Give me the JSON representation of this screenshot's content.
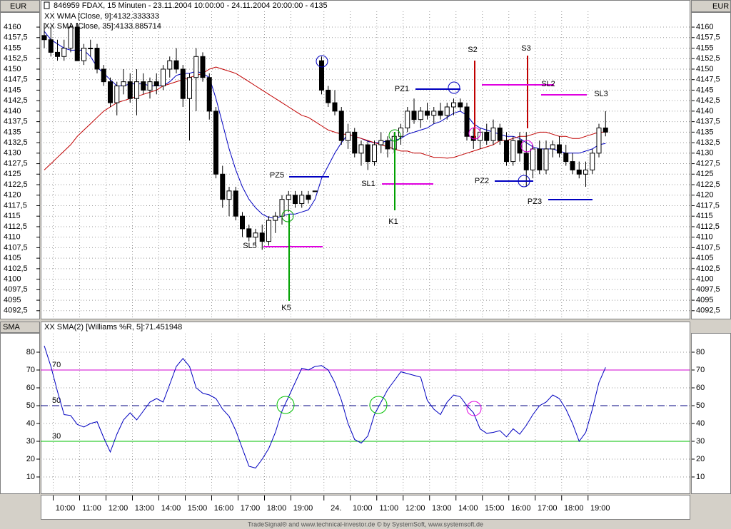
{
  "header": {
    "left_currency": "EUR",
    "right_currency": "EUR"
  },
  "chart_data": [
    {
      "type": "candlestick",
      "title": "846959  FDAX, 15 Minuten - 23.11.2004 10:00:00 - 24.11.2004 20:00:00 - 4135",
      "categories": [
        null,
        null,
        "10:00",
        null,
        null,
        null,
        "11:00",
        null,
        null,
        null,
        "12:00",
        null,
        null,
        null,
        "13:00",
        null,
        null,
        null,
        "14:00",
        null,
        null,
        null,
        "15:00",
        null,
        null,
        null,
        "16:00",
        null,
        null,
        null,
        "17:00",
        null,
        null,
        null,
        "18:00",
        null,
        null,
        null,
        "19:00",
        null,
        null,
        null,
        null,
        "24.",
        null,
        null,
        null,
        "10:00",
        null,
        null,
        null,
        "11:00",
        null,
        null,
        null,
        "12:00",
        null,
        null,
        null,
        "13:00",
        null,
        null,
        null,
        "14:00",
        null,
        null,
        null,
        "15:00",
        null,
        null,
        null,
        "16:00",
        null,
        null,
        null,
        "17:00",
        null,
        null,
        null,
        "18:00",
        null,
        null,
        null,
        "19:00",
        null,
        null
      ],
      "open": [
        4158,
        4157,
        4154,
        4153,
        4155,
        4160,
        4152,
        4155,
        4155,
        4150,
        4147,
        4142,
        4146,
        4147,
        4143,
        4147,
        4145,
        4147,
        4146,
        4150,
        4152,
        4150,
        4143,
        4148,
        4153,
        4148,
        4140,
        4125,
        4119,
        4121,
        4115,
        4112,
        4110,
        4111,
        4109,
        4114,
        4115,
        4119,
        4120,
        4118,
        4120,
        4121,
        4152,
        4145,
        4142,
        4140,
        4133,
        4135,
        4130,
        4132,
        4128,
        4132,
        4133,
        4131,
        4134,
        4136,
        4140,
        4138,
        4140,
        4139,
        4140,
        4139,
        4141,
        4142,
        4141,
        4134,
        4133,
        4135,
        4133,
        4136,
        4133,
        4128,
        4133,
        4130,
        4126,
        4131,
        4126,
        4131,
        4132,
        4130,
        4128,
        4126,
        4125,
        4126,
        4130,
        4136
      ],
      "high": [
        4161,
        4160,
        4157,
        4157,
        4161,
        4161,
        4156,
        4157,
        4156,
        4151,
        4148,
        4147,
        4150,
        4149,
        4150,
        4149,
        4148,
        4149,
        4151,
        4153,
        4155,
        4151,
        4149,
        4155,
        4154,
        4149,
        4141,
        4127,
        4122,
        4122,
        4116,
        4113,
        4112,
        4113,
        4115,
        4116,
        4120,
        4121,
        4121,
        4121,
        4121,
        4121,
        4153,
        4146,
        4145,
        4141,
        4137,
        4136,
        4133,
        4133,
        4133,
        4135,
        4134,
        4135,
        4137,
        4141,
        4143,
        4141,
        4142,
        4141,
        4142,
        4142,
        4143,
        4143,
        4142,
        4136,
        4136,
        4137,
        4138,
        4137,
        4135,
        4134,
        4135,
        4135,
        4132,
        4133,
        4133,
        4133,
        4134,
        4132,
        4130,
        4128,
        4128,
        4131,
        4137,
        4140
      ],
      "low": [
        4155,
        4153,
        4152,
        4152,
        4154,
        4152,
        4151,
        4153,
        4149,
        4146,
        4141,
        4139,
        4144,
        4142,
        4139,
        4144,
        4143,
        4144,
        4145,
        4148,
        4149,
        4141,
        4133,
        4140,
        4147,
        4138,
        4124,
        4117,
        4115,
        4114,
        4110,
        4109,
        4108,
        4107,
        4108,
        4111,
        4113,
        4116,
        4117,
        4117,
        4118,
        4121,
        4144,
        4141,
        4139,
        4132,
        4131,
        4129,
        4127,
        4126,
        4127,
        4130,
        4129,
        4130,
        4132,
        4135,
        4137,
        4136,
        4138,
        4137,
        4138,
        4138,
        4139,
        4140,
        4133,
        4131,
        4131,
        4132,
        4132,
        4132,
        4127,
        4127,
        4128,
        4122,
        4124,
        4125,
        4125,
        4129,
        4129,
        4127,
        4125,
        4124,
        4122,
        4125,
        4129,
        4134
      ],
      "close": [
        4157,
        4154,
        4153,
        4155,
        4160,
        4152,
        4155,
        4155,
        4150,
        4147,
        4142,
        4146,
        4147,
        4143,
        4147,
        4145,
        4147,
        4146,
        4150,
        4152,
        4150,
        4143,
        4148,
        4153,
        4148,
        4140,
        4125,
        4119,
        4121,
        4115,
        4112,
        4110,
        4111,
        4109,
        4114,
        4115,
        4119,
        4120,
        4118,
        4120,
        4119,
        4121,
        4145,
        4142,
        4140,
        4133,
        4135,
        4130,
        4132,
        4128,
        4132,
        4133,
        4131,
        4134,
        4136,
        4140,
        4138,
        4140,
        4139,
        4140,
        4139,
        4141,
        4142,
        4141,
        4134,
        4133,
        4135,
        4133,
        4136,
        4133,
        4128,
        4133,
        4130,
        4126,
        4131,
        4126,
        4131,
        4132,
        4130,
        4128,
        4126,
        4125,
        4126,
        4130,
        4136,
        4135
      ],
      "up_color": "#ffffff",
      "down_color": "#000000",
      "series": [
        {
          "name": "XX WMA [Close, 9]:4132.333333",
          "color": "#0000c0",
          "values": [
            4159,
            4157,
            4156,
            4155,
            4154.5,
            4154.5,
            4154.5,
            4153,
            4150.5,
            4149,
            4147.5,
            4146,
            4146,
            4146.5,
            4146.5,
            4146.5,
            4146,
            4146,
            4146,
            4147,
            4148.5,
            4149,
            4149,
            4149.5,
            4149,
            4148,
            4143,
            4137,
            4131,
            4126,
            4122,
            4119,
            4117,
            4115.5,
            4114.7,
            4114.5,
            4115,
            4115.5,
            4115.5,
            4116,
            4116.5,
            4119,
            4124,
            4127,
            4130,
            4132.5,
            4134.5,
            4134,
            4133.5,
            4132.8,
            4132.5,
            4132.5,
            4133,
            4133,
            4133.5,
            4134.5,
            4135,
            4135.5,
            4136,
            4137,
            4137.5,
            4138.5,
            4139.5,
            4140,
            4139,
            4137,
            4136,
            4135.5,
            4135,
            4134.5,
            4134,
            4134,
            4133.5,
            4132.5,
            4131.5,
            4131,
            4131,
            4131,
            4130.5,
            4130,
            4130,
            4130,
            4130.5,
            4131,
            4132,
            4132.3
          ]
        },
        {
          "name": "XX SMA [Close, 35]:4133.885714",
          "color": "#c00000",
          "values": [
            4126,
            4127.5,
            4129,
            4130.5,
            4132,
            4134,
            4135.5,
            4137,
            4138.5,
            4140,
            4141,
            4142,
            4142.5,
            4143,
            4143.5,
            4144,
            4144.5,
            4145,
            4146,
            4146.5,
            4147,
            4147.5,
            4148,
            4148.5,
            4149,
            4150,
            4150.5,
            4150,
            4149.5,
            4149,
            4148,
            4147,
            4146,
            4145,
            4144,
            4143,
            4142,
            4141,
            4140,
            4139,
            4138.5,
            4137.5,
            4136.5,
            4135.5,
            4135,
            4134.5,
            4134.5,
            4134,
            4133.5,
            4133,
            4132.5,
            4132,
            4131.5,
            4131,
            4130.5,
            4130.5,
            4130,
            4130,
            4129.5,
            4129,
            4129,
            4128.8,
            4129,
            4129.5,
            4130,
            4130.5,
            4131,
            4131.5,
            4132,
            4133,
            4133,
            4133.5,
            4134,
            4134,
            4134.5,
            4135,
            4135,
            4134.5,
            4134,
            4134,
            4133.5,
            4133.5,
            4134,
            4134.5,
            4135,
            4135
          ]
        }
      ],
      "ylim": [
        4090.6,
        4163.4
      ],
      "yticks": [
        {
          "value": 4092.5,
          "label": "4092,5"
        },
        4095,
        {
          "value": 4097.5,
          "label": "4097,5"
        },
        4100,
        {
          "value": 4102.5,
          "label": "4102,5"
        },
        4105,
        {
          "value": 4107.5,
          "label": "4107,5"
        },
        4110,
        {
          "value": 4112.5,
          "label": "4112,5"
        },
        4115,
        {
          "value": 4117.5,
          "label": "4117,5"
        },
        4120,
        {
          "value": 4122.5,
          "label": "4122,5"
        },
        4125,
        {
          "value": 4127.5,
          "label": "4127,5"
        },
        4130,
        {
          "value": 4132.5,
          "label": "4132,5"
        },
        4135,
        {
          "value": 4137.5,
          "label": "4137,5"
        },
        4140,
        {
          "value": 4142.5,
          "label": "4142,5"
        },
        4145,
        {
          "value": 4147.5,
          "label": "4147,5"
        },
        4150,
        {
          "value": 4152.5,
          "label": "4152,5"
        },
        4155,
        {
          "value": 4157.5,
          "label": "4157,5"
        },
        4160
      ],
      "grid": true,
      "annotations": [
        {
          "label": "PZ1"
        },
        {
          "label": "S2"
        },
        {
          "label": "S3"
        },
        {
          "label": "SL2"
        },
        {
          "label": "SL3"
        },
        {
          "label": "SL1"
        },
        {
          "label": "K1"
        },
        {
          "label": "PZ5"
        },
        {
          "label": "SL5"
        },
        {
          "label": "K5"
        },
        {
          "label": "PZ2"
        },
        {
          "label": "PZ3"
        }
      ]
    },
    {
      "type": "line",
      "panel_label": "SMA",
      "series": [
        {
          "name": "XX SMA(2) [Williams %R, 5]:71.451948",
          "color": "#0000c0",
          "values": [
            83.6,
            72,
            58,
            45,
            44.5,
            39.5,
            38,
            40,
            41,
            32,
            24,
            34,
            42,
            46,
            42,
            47,
            52,
            54,
            52,
            62,
            72,
            76.5,
            72,
            60,
            57,
            56,
            54,
            48,
            44,
            36,
            26,
            16,
            15,
            20,
            26,
            35,
            47,
            55,
            63,
            71,
            70,
            72,
            72.5,
            70,
            63,
            53,
            40,
            31,
            29,
            33,
            45,
            52,
            59,
            64,
            69,
            68,
            67,
            66,
            53,
            48,
            45,
            52,
            56,
            55,
            50,
            46,
            37,
            34.5,
            35,
            36,
            32.5,
            37,
            34,
            39,
            45,
            50,
            52,
            56,
            54,
            48,
            40,
            30,
            35,
            48,
            63,
            71.5
          ]
        }
      ],
      "ylim": [
        0.8,
        89.6
      ],
      "yticks": [
        10,
        20,
        30,
        40,
        50,
        60,
        70,
        80
      ],
      "grid": true,
      "levels": [
        {
          "value": 70,
          "color": "#d000d0",
          "dashed": false
        },
        {
          "value": 50,
          "color": "#000080",
          "dashed": true
        },
        {
          "value": 30,
          "color": "#00c000",
          "dashed": false
        }
      ]
    }
  ],
  "footer": "TradeSignal® and www.technical-investor.de © by SystemSoft, www.systemsoft.de"
}
